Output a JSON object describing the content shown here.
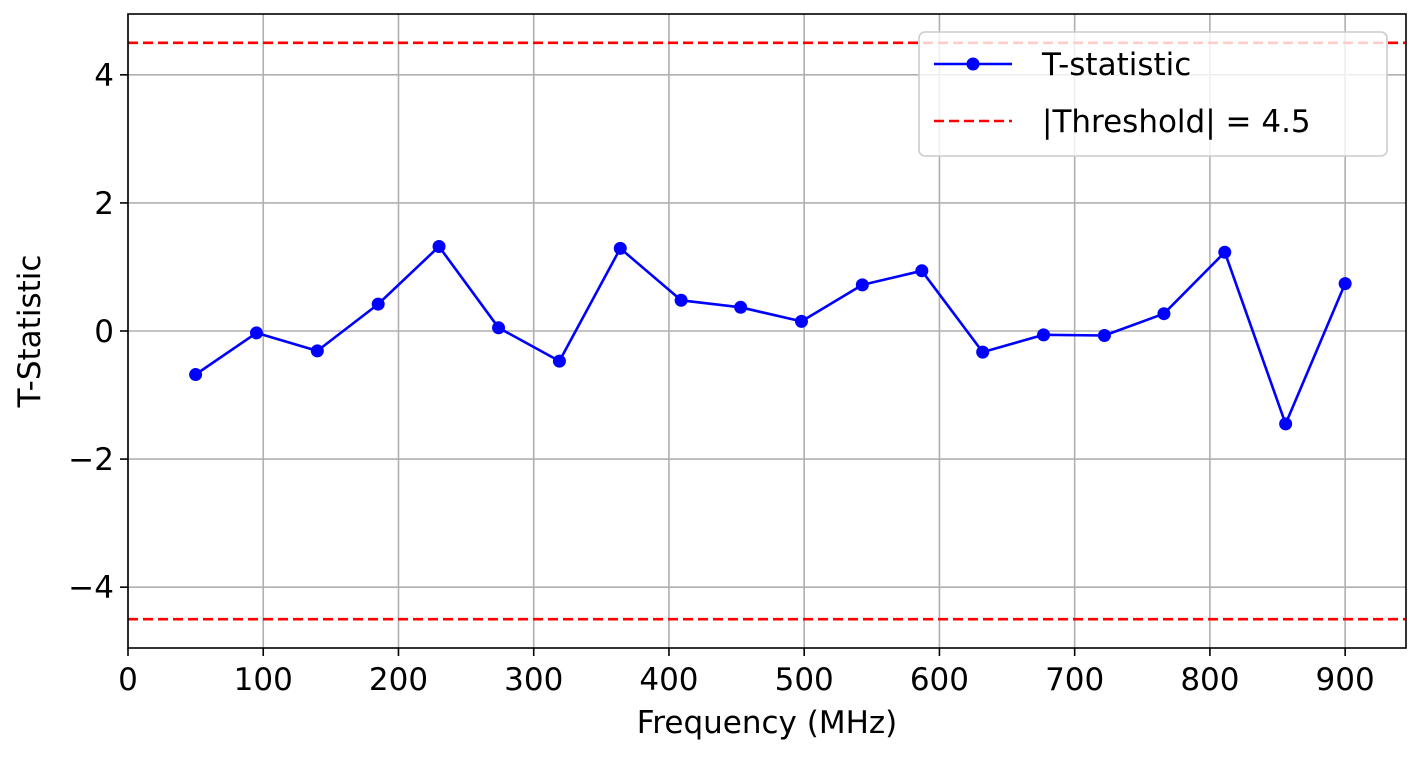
{
  "chart_data": {
    "type": "line",
    "title": "",
    "xlabel": "Frequency (MHz)",
    "ylabel": "T-Statistic",
    "xlim": [
      0,
      945
    ],
    "ylim": [
      -4.95,
      4.95
    ],
    "x_ticks": [
      0,
      100,
      200,
      300,
      400,
      500,
      600,
      700,
      800,
      900
    ],
    "x_tick_labels": [
      "0",
      "100",
      "200",
      "300",
      "400",
      "500",
      "600",
      "700",
      "800",
      "900"
    ],
    "y_ticks": [
      -4,
      -2,
      0,
      2,
      4
    ],
    "y_tick_labels": [
      "−4",
      "−2",
      "0",
      "2",
      "4"
    ],
    "grid": true,
    "legend_position": "top-right",
    "series": [
      {
        "name": "T-statistic",
        "color": "#0000ff",
        "marker": "circle",
        "line_style": "solid",
        "x": [
          50,
          95,
          140,
          185,
          230,
          274,
          319,
          364,
          409,
          453,
          498,
          543,
          587,
          632,
          677,
          722,
          766,
          811,
          856,
          900
        ],
        "y": [
          -0.68,
          -0.03,
          -0.31,
          0.42,
          1.32,
          0.05,
          -0.47,
          1.29,
          0.48,
          0.37,
          0.15,
          0.72,
          0.94,
          -0.33,
          -0.06,
          -0.07,
          0.27,
          1.23,
          -1.45,
          0.74
        ]
      }
    ],
    "reference_lines": [
      {
        "name": "|Threshold| = 4.5",
        "y": 4.5,
        "color": "#ff0000",
        "line_style": "dashed"
      },
      {
        "name": "",
        "y": -4.5,
        "color": "#ff0000",
        "line_style": "dashed"
      }
    ]
  }
}
